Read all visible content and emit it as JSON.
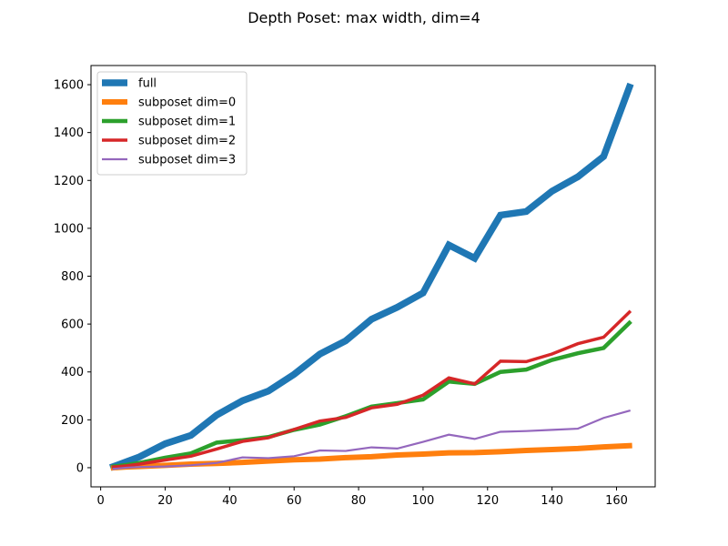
{
  "chart_data": {
    "type": "line",
    "title": "Depth Poset: max width, dim=4",
    "xlabel": "",
    "ylabel": "",
    "xlim": [
      -3.0,
      172.0
    ],
    "ylim": [
      -80,
      1680
    ],
    "xticks": [
      0,
      20,
      40,
      60,
      80,
      100,
      120,
      140,
      160
    ],
    "yticks": [
      0,
      200,
      400,
      600,
      800,
      1000,
      1200,
      1400,
      1600
    ],
    "grid": false,
    "legend_position": "top-left",
    "x": [
      4,
      8,
      12,
      20,
      28,
      36,
      44,
      52,
      60,
      68,
      76,
      84,
      92,
      100,
      108,
      116,
      124,
      132,
      140,
      148,
      156,
      164
    ],
    "series": [
      {
        "name": "full",
        "color": "#1f77b4",
        "values": [
          5,
          25,
          45,
          100,
          135,
          220,
          280,
          320,
          390,
          475,
          530,
          620,
          670,
          730,
          930,
          875,
          1055,
          1070,
          1155,
          1215,
          1300,
          1590
        ]
      },
      {
        "name": "subposet dim=0",
        "color": "#ff7f0e",
        "values": [
          0,
          3,
          5,
          10,
          15,
          18,
          22,
          28,
          33,
          36,
          42,
          46,
          53,
          57,
          62,
          63,
          67,
          72,
          76,
          80,
          87,
          92
        ]
      },
      {
        "name": "subposet dim=1",
        "color": "#2ca02c",
        "values": [
          5,
          12,
          20,
          42,
          60,
          105,
          115,
          128,
          158,
          180,
          215,
          255,
          270,
          285,
          360,
          350,
          400,
          410,
          450,
          478,
          500,
          605
        ]
      },
      {
        "name": "subposet dim=2",
        "color": "#d62728",
        "values": [
          3,
          8,
          15,
          32,
          48,
          78,
          110,
          125,
          160,
          195,
          210,
          250,
          265,
          303,
          375,
          350,
          445,
          443,
          475,
          518,
          545,
          650
        ]
      },
      {
        "name": "subposet dim=3",
        "color": "#9467bd",
        "values": [
          -5,
          0,
          3,
          5,
          10,
          20,
          43,
          40,
          48,
          72,
          70,
          85,
          80,
          108,
          138,
          120,
          150,
          153,
          158,
          163,
          208,
          238
        ]
      }
    ]
  }
}
